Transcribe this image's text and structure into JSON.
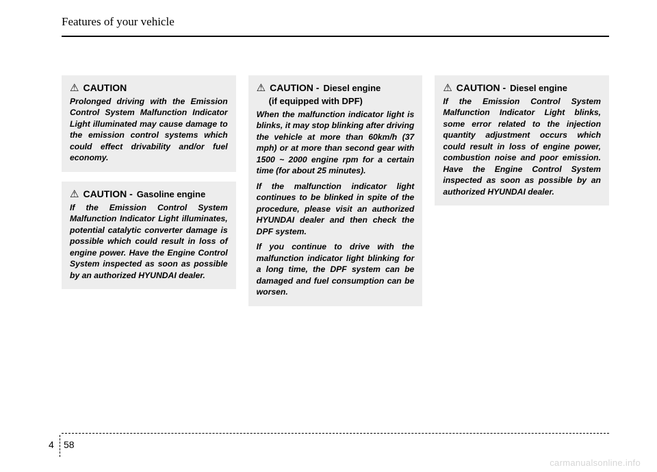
{
  "header": {
    "title": "Features of your vehicle"
  },
  "columns": {
    "col1": {
      "box1": {
        "icon": "⚠",
        "word": "CAUTION",
        "body": "Prolonged driving with the Emission Control System Malfunction Indicator Light illuminated may cause damage to the emission control systems which could effect drivability and/or fuel economy."
      },
      "box2": {
        "icon": "⚠",
        "word": "CAUTION -",
        "sub": "Gasoline engine",
        "body": "If the Emission Control System Malfunction Indicator Light illuminates, potential catalytic converter damage is possible which could result in loss of engine power. Have the Engine Control System inspected as soon as possible by an authorized HYUNDAI dealer."
      }
    },
    "col2": {
      "box1": {
        "icon": "⚠",
        "word": "CAUTION -",
        "sub": "Diesel engine",
        "subline": "(if equipped with DPF)",
        "p1": "When the malfunction indicator light is blinks, it may stop blinking after driving the vehicle at more than 60km/h (37 mph) or at more than second gear with 1500 ~ 2000 engine rpm for a certain time (for about 25 minutes).",
        "p2": "If the malfunction indicator light continues to be blinked in spite of the procedure, please visit an authorized HYUNDAI dealer and then check the DPF system.",
        "p3": "If you continue to drive with the malfunction indicator light blinking for a long time, the DPF system can be damaged and fuel consumption can be worsen."
      }
    },
    "col3": {
      "box1": {
        "icon": "⚠",
        "word": "CAUTION -",
        "sub": "Diesel engine",
        "body": "If the Emission Control System Malfunction Indicator Light blinks, some error related to the injection quantity adjustment  occurs which could result in loss of engine power, combustion noise and poor emission. Have the Engine Control System inspected as soon as possible by an authorized HYUNDAI dealer."
      }
    }
  },
  "footer": {
    "section": "4",
    "page": "58",
    "watermark": "carmanualsonline.info"
  }
}
